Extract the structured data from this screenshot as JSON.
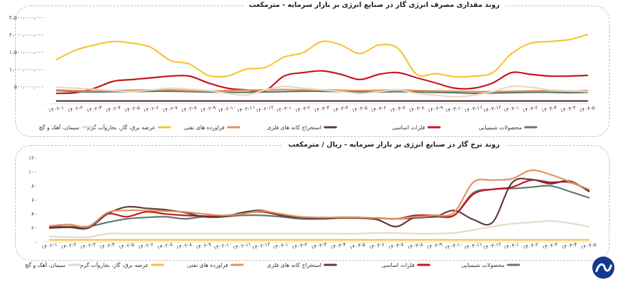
{
  "chart_data": [
    {
      "type": "line",
      "title": "روند مقداری مصرف انرژی گاز در صنایع انرژی بر بازار سرمایه - مترمکعب",
      "categories": [
        "۱۴۰۲-۱",
        "۱۴۰۲-۲",
        "۱۴۰۲-۳",
        "۱۴۰۲-۴",
        "۱۴۰۲-۵",
        "۱۴۰۲-۶",
        "۱۴۰۲-۷",
        "۱۴۰۲-۸",
        "۱۴۰۲-۹",
        "۱۴۰۲-۱۰",
        "۱۴۰۲-۱۱",
        "۱۴۰۲-۱۲",
        "۱۴۰۳-۱",
        "۱۴۰۳-۲",
        "۱۴۰۳-۳",
        "۱۴۰۳-۴",
        "۱۴۰۳-۵",
        "۱۴۰۳-۶",
        "۱۴۰۳-۷",
        "۱۴۰۳-۸",
        "۱۴۰۳-۹",
        "۱۴۰۳-۱۰",
        "۱۴۰۳-۱۱",
        "۱۴۰۳-۱۲",
        "۱۴۰۴-۱",
        "۱۴۰۴-۲",
        "۱۴۰۴-۳",
        "۱۴۰۴-۴",
        "۱۴۰۴-۵"
      ],
      "yticks": [
        "۰",
        "۵۰۰،۰۰۰،۰۰۰",
        "۱،۰۰۰،۰۰۰،۰۰۰",
        "۱،۵۰۰،۰۰۰،۰۰۰",
        "۲،۰۰۰،۰۰۰،۰۰۰",
        "۲،۵۰۰،۰۰۰،۰۰۰"
      ],
      "ylim": [
        0,
        2500000000
      ],
      "series": [
        {
          "name": "عرضه برق، گاز، بخاروآب گرم",
          "color": "#f7c531",
          "values": [
            1280000000,
            1550000000,
            1700000000,
            1800000000,
            1750000000,
            1620000000,
            1250000000,
            1150000000,
            820000000,
            800000000,
            1000000000,
            1050000000,
            1350000000,
            1480000000,
            1800000000,
            1700000000,
            1450000000,
            1700000000,
            1600000000,
            850000000,
            870000000,
            780000000,
            800000000,
            900000000,
            1450000000,
            1750000000,
            1800000000,
            1850000000,
            2000000000
          ]
        },
        {
          "name": "فلزات اساسی",
          "color": "#c8151b",
          "values": [
            300000000,
            320000000,
            450000000,
            650000000,
            700000000,
            750000000,
            800000000,
            800000000,
            600000000,
            450000000,
            400000000,
            380000000,
            800000000,
            900000000,
            950000000,
            850000000,
            700000000,
            850000000,
            900000000,
            750000000,
            600000000,
            450000000,
            450000000,
            600000000,
            900000000,
            850000000,
            800000000,
            800000000,
            820000000
          ]
        },
        {
          "name": "محصولات شیمیایی",
          "color": "#5a7a6e",
          "values": [
            380000000,
            350000000,
            340000000,
            350000000,
            350000000,
            360000000,
            360000000,
            350000000,
            340000000,
            330000000,
            330000000,
            340000000,
            350000000,
            360000000,
            360000000,
            350000000,
            340000000,
            340000000,
            350000000,
            340000000,
            330000000,
            320000000,
            300000000,
            310000000,
            320000000,
            330000000,
            330000000,
            320000000,
            330000000
          ]
        },
        {
          "name": "فراورده های نفتی",
          "color": "#e2915a",
          "values": [
            400000000,
            380000000,
            370000000,
            380000000,
            390000000,
            400000000,
            400000000,
            380000000,
            370000000,
            380000000,
            390000000,
            400000000,
            410000000,
            400000000,
            400000000,
            390000000,
            380000000,
            390000000,
            400000000,
            380000000,
            370000000,
            360000000,
            350000000,
            350000000,
            360000000,
            370000000,
            380000000,
            370000000,
            380000000
          ]
        },
        {
          "name": "سیمان، آهک و گچ",
          "color": "#e7d9c7",
          "values": [
            480000000,
            450000000,
            420000000,
            380000000,
            350000000,
            400000000,
            450000000,
            420000000,
            380000000,
            300000000,
            250000000,
            400000000,
            500000000,
            450000000,
            400000000,
            350000000,
            300000000,
            350000000,
            400000000,
            300000000,
            250000000,
            200000000,
            250000000,
            350000000,
            500000000,
            480000000,
            400000000,
            380000000,
            350000000
          ]
        },
        {
          "name": "استخراج کانه های فلزی",
          "color": "#5e3a3f",
          "values": [
            80000000,
            80000000,
            80000000,
            80000000,
            80000000,
            80000000,
            80000000,
            80000000,
            80000000,
            80000000,
            80000000,
            80000000,
            80000000,
            80000000,
            80000000,
            80000000,
            80000000,
            80000000,
            80000000,
            80000000,
            80000000,
            80000000,
            80000000,
            80000000,
            80000000,
            80000000,
            80000000,
            80000000,
            80000000
          ]
        }
      ]
    },
    {
      "type": "line",
      "title": "روند نرخ گاز در صنایع انرژی بر بازار سرمایه - ریال / مترمکعب",
      "categories": [
        "۱۴۰۲-۱",
        "۱۴۰۲-۲",
        "۱۴۰۲-۳",
        "۱۴۰۲-۴",
        "۱۴۰۲-۵",
        "۱۴۰۲-۶",
        "۱۴۰۲-۷",
        "۱۴۰۲-۸",
        "۱۴۰۲-۹",
        "۱۴۰۲-۱۰",
        "۱۴۰۲-۱۱",
        "۱۴۰۲-۱۲",
        "۱۴۰۳-۱",
        "۱۴۰۳-۲",
        "۱۴۰۳-۳",
        "۱۴۰۳-۴",
        "۱۴۰۳-۵",
        "۱۴۰۳-۶",
        "۱۴۰۳-۷",
        "۱۴۰۳-۸",
        "۱۴۰۳-۹",
        "۱۴۰۳-۱۰",
        "۱۴۰۳-۱۱",
        "۱۴۰۳-۱۲",
        "۱۴۰۴-۱",
        "۱۴۰۴-۲",
        "۱۴۰۴-۳",
        "۱۴۰۴-۴",
        "۱۴۰۴-۵"
      ],
      "yticks": [
        "۰",
        "۲۰",
        "۴۰",
        "۶۰",
        "۸۰",
        "۱۰۰",
        "۱۲۰"
      ],
      "ylim": [
        0,
        120
      ],
      "series": [
        {
          "name": "محصولات شیمیایی",
          "color": "#5a7a6e",
          "values": [
            22,
            22,
            22,
            28,
            33,
            35,
            36,
            33,
            36,
            36,
            38,
            38,
            36,
            33,
            33,
            34,
            34,
            34,
            33,
            34,
            36,
            38,
            70,
            75,
            76,
            78,
            80,
            72,
            63
          ]
        },
        {
          "name": "فلزات اساسی",
          "color": "#c8151b",
          "values": [
            21,
            21,
            22,
            40,
            36,
            43,
            40,
            38,
            37,
            37,
            41,
            43,
            38,
            35,
            34,
            35,
            35,
            34,
            33,
            38,
            38,
            38,
            68,
            75,
            78,
            88,
            85,
            85,
            74
          ]
        },
        {
          "name": "استخراج کانه های فلزی",
          "color": "#5e3a3f",
          "values": [
            20,
            21,
            20,
            40,
            50,
            48,
            46,
            42,
            36,
            36,
            42,
            45,
            38,
            35,
            33,
            34,
            34,
            32,
            22,
            36,
            36,
            45,
            32,
            28,
            84,
            89,
            83,
            87,
            72
          ]
        },
        {
          "name": "فراورده های نفتی",
          "color": "#e2915a",
          "values": [
            23,
            25,
            22,
            42,
            45,
            45,
            44,
            43,
            40,
            38,
            40,
            44,
            40,
            36,
            35,
            35,
            35,
            34,
            33,
            36,
            38,
            42,
            85,
            88,
            90,
            102,
            96,
            86,
            75
          ]
        },
        {
          "name": "عرضه برق، گاز، بخاروآب گرم",
          "color": "#f7c531",
          "values": [
            3,
            3,
            3,
            3,
            3,
            3,
            3,
            3,
            3,
            3,
            3,
            3,
            3,
            3,
            3,
            3,
            3,
            3,
            3,
            3,
            3,
            3,
            3,
            3,
            3,
            3,
            3,
            3,
            3
          ]
        },
        {
          "name": "سیمان، آهک و گچ",
          "color": "#e7d9c7",
          "values": [
            8,
            7,
            7,
            12,
            12,
            12,
            12,
            12,
            12,
            12,
            12,
            12,
            12,
            12,
            12,
            12,
            12,
            13,
            13,
            12,
            12,
            13,
            17,
            22,
            26,
            28,
            30,
            27,
            22
          ]
        }
      ]
    }
  ]
}
